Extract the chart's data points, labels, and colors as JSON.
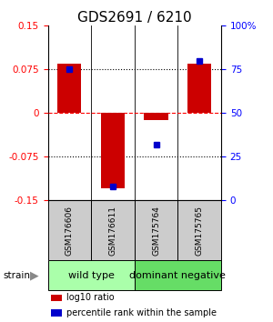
{
  "title": "GDS2691 / 6210",
  "samples": [
    "GSM176606",
    "GSM176611",
    "GSM175764",
    "GSM175765"
  ],
  "log10_ratio": [
    0.085,
    -0.13,
    -0.012,
    0.085
  ],
  "percentile_rank": [
    75,
    8,
    32,
    80
  ],
  "groups": [
    {
      "label": "wild type",
      "start": 0,
      "end": 2,
      "color": "#aaffaa"
    },
    {
      "label": "dominant negative",
      "start": 2,
      "end": 4,
      "color": "#66dd66"
    }
  ],
  "group_label": "strain",
  "bar_color_red": "#cc0000",
  "bar_color_blue": "#0000cc",
  "ylim": [
    -0.15,
    0.15
  ],
  "yticks_left": [
    -0.15,
    -0.075,
    0,
    0.075,
    0.15
  ],
  "yticks_right": [
    0,
    25,
    50,
    75,
    100
  ],
  "hlines_dotted": [
    -0.075,
    0.075
  ],
  "hline_dashed": 0,
  "title_fontsize": 11,
  "tick_fontsize": 7.5,
  "sample_fontsize": 6.5,
  "group_fontsize": 8,
  "legend_fontsize": 7,
  "bar_width": 0.55,
  "label_box_color": "#cccccc",
  "legend_items": [
    "log10 ratio",
    "percentile rank within the sample"
  ]
}
